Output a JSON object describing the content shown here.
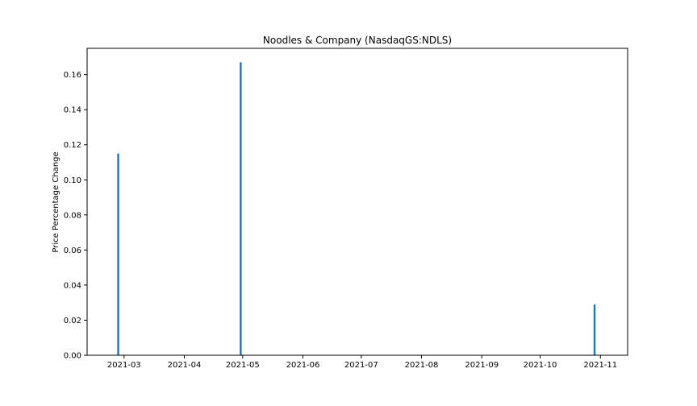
{
  "chart_data": {
    "type": "bar",
    "title": "Noodles & Company (NasdaqGS:NDLS)",
    "xlabel": "",
    "ylabel": "Price Percentage Change",
    "x_type": "date",
    "xlim": [
      "2021-02-10",
      "2021-11-15"
    ],
    "ylim": [
      0,
      0.175
    ],
    "x_ticks": [
      "2021-03",
      "2021-04",
      "2021-05",
      "2021-06",
      "2021-07",
      "2021-08",
      "2021-09",
      "2021-10",
      "2021-11"
    ],
    "x_tick_dates": [
      "2021-03-01",
      "2021-04-01",
      "2021-05-01",
      "2021-06-01",
      "2021-07-01",
      "2021-08-01",
      "2021-09-01",
      "2021-10-01",
      "2021-11-01"
    ],
    "y_ticks": [
      "0.00",
      "0.02",
      "0.04",
      "0.06",
      "0.08",
      "0.10",
      "0.12",
      "0.14",
      "0.16"
    ],
    "y_tick_values": [
      0,
      0.02,
      0.04,
      0.06,
      0.08,
      0.1,
      0.12,
      0.14,
      0.16
    ],
    "points": [
      {
        "x": "2021-02-26",
        "y": 0.115
      },
      {
        "x": "2021-04-30",
        "y": 0.167
      },
      {
        "x": "2021-10-29",
        "y": 0.029
      }
    ],
    "bar_color": "#1f77b4",
    "grid": false,
    "legend": "none"
  }
}
